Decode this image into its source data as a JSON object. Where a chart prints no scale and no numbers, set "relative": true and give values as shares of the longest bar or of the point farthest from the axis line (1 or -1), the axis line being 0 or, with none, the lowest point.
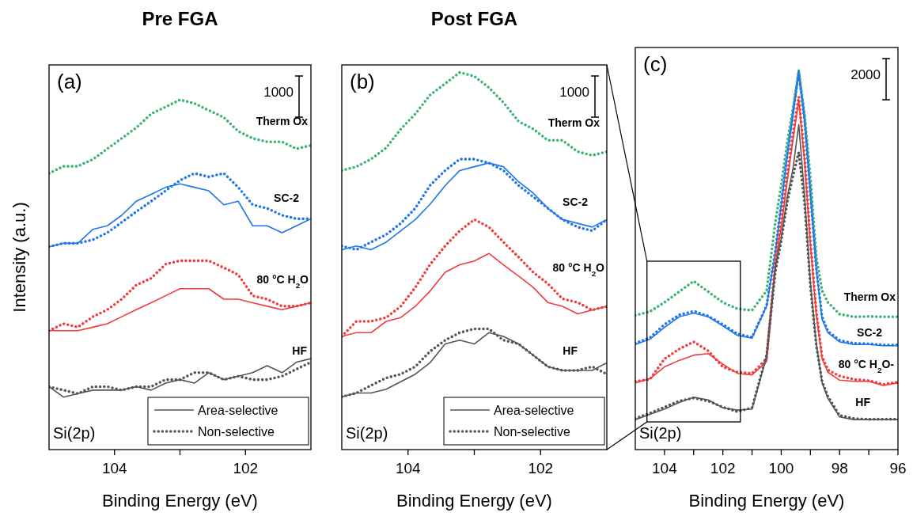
{
  "chart_data": [
    {
      "type": "line",
      "title": "Pre FGA",
      "xlabel": "Binding Energy (eV)",
      "ylabel": "Intensity (a.u.)",
      "relative": true,
      "legend": "bottom right",
      "marker": "none",
      "x": [
        105,
        104.78,
        104.56,
        104.33,
        104.11,
        103.89,
        103.67,
        103.44,
        103.22,
        103.0,
        102.78,
        102.56,
        102.33,
        102.11,
        101.89,
        101.67,
        101.44,
        101.22,
        101.0
      ],
      "xlim": [
        105,
        101
      ],
      "xticks": [
        104,
        {
          "value": 103,
          "label": null
        },
        102
      ],
      "annotations": [
        "(a)",
        "1000",
        "Si(2p)",
        "Therm Ox",
        "SC-2",
        "80 °C H$_{2}$O",
        "HF"
      ],
      "series": [
        {
          "color": "#3cb371",
          "line_style": "dotted",
          "values": [
            0.79,
            0.81,
            0.81,
            0.83,
            0.86,
            0.89,
            0.92,
            0.96,
            0.98,
            1.0,
            0.99,
            0.97,
            0.95,
            0.91,
            0.89,
            0.88,
            0.88,
            0.86,
            0.87
          ]
        },
        {
          "color": "#1f77e8",
          "line_style": "solid",
          "values": [
            0.58,
            0.59,
            0.59,
            0.63,
            0.64,
            0.67,
            0.71,
            0.73,
            0.75,
            0.76,
            0.75,
            0.74,
            0.7,
            0.71,
            0.64,
            0.64,
            0.62,
            0.64,
            0.66
          ]
        },
        {
          "color": "#1f77e8",
          "line_style": "dotted",
          "values": [
            0.58,
            0.59,
            0.59,
            0.6,
            0.62,
            0.65,
            0.68,
            0.71,
            0.74,
            0.77,
            0.79,
            0.78,
            0.79,
            0.75,
            0.7,
            0.69,
            0.67,
            0.66,
            0.66
          ]
        },
        {
          "color": "#f03c3c",
          "line_style": "solid",
          "values": [
            0.34,
            0.34,
            0.34,
            0.35,
            0.36,
            0.38,
            0.4,
            0.42,
            0.44,
            0.46,
            0.46,
            0.46,
            0.43,
            0.43,
            0.42,
            0.41,
            0.4,
            0.41,
            0.42
          ]
        },
        {
          "color": "#f03c3c",
          "line_style": "dotted",
          "values": [
            0.34,
            0.36,
            0.35,
            0.38,
            0.4,
            0.43,
            0.47,
            0.49,
            0.53,
            0.54,
            0.54,
            0.54,
            0.52,
            0.5,
            0.44,
            0.43,
            0.41,
            0.41,
            0.42
          ]
        },
        {
          "name": "Area-selective",
          "color": "#555555",
          "line_style": "solid",
          "values": [
            0.18,
            0.15,
            0.16,
            0.17,
            0.17,
            0.17,
            0.18,
            0.17,
            0.19,
            0.2,
            0.19,
            0.22,
            0.2,
            0.21,
            0.22,
            0.24,
            0.22,
            0.25,
            0.26
          ]
        },
        {
          "name": "Non-selective",
          "color": "#555555",
          "line_style": "dotted",
          "values": [
            0.18,
            0.17,
            0.16,
            0.18,
            0.18,
            0.17,
            0.18,
            0.18,
            0.2,
            0.2,
            0.22,
            0.22,
            0.2,
            0.21,
            0.2,
            0.2,
            0.21,
            0.23,
            0.25
          ]
        }
      ]
    },
    {
      "type": "line",
      "title": "Post FGA",
      "xlabel": "Binding Energy (eV)",
      "relative": true,
      "legend": "bottom right",
      "marker": "none",
      "x": [
        105,
        104.78,
        104.56,
        104.33,
        104.11,
        103.89,
        103.67,
        103.44,
        103.22,
        103.0,
        102.78,
        102.56,
        102.33,
        102.11,
        101.89,
        101.67,
        101.44,
        101.22,
        101.0
      ],
      "xlim": [
        105,
        101
      ],
      "xticks": [
        104,
        {
          "value": 103,
          "label": null
        },
        102
      ],
      "annotations": [
        "(b)",
        "1000",
        "Si(2p)",
        "Therm Ox",
        "SC-2",
        "80 °C H$_{2}$O",
        "HF"
      ],
      "series": [
        {
          "color": "#3cb371",
          "line_style": "dotted",
          "values": [
            0.74,
            0.75,
            0.77,
            0.8,
            0.85,
            0.89,
            0.94,
            0.97,
            1.0,
            0.99,
            0.96,
            0.92,
            0.87,
            0.85,
            0.82,
            0.82,
            0.79,
            0.78,
            0.79
          ]
        },
        {
          "color": "#1f77e8",
          "line_style": "solid",
          "values": [
            0.53,
            0.54,
            0.53,
            0.55,
            0.58,
            0.61,
            0.65,
            0.7,
            0.74,
            0.75,
            0.76,
            0.75,
            0.71,
            0.68,
            0.64,
            0.61,
            0.6,
            0.59,
            0.61
          ]
        },
        {
          "color": "#1f77e8",
          "line_style": "dotted",
          "values": [
            0.54,
            0.53,
            0.55,
            0.57,
            0.6,
            0.64,
            0.7,
            0.74,
            0.77,
            0.77,
            0.76,
            0.74,
            0.7,
            0.67,
            0.64,
            0.61,
            0.59,
            0.58,
            0.61
          ]
        },
        {
          "color": "#f03c3c",
          "line_style": "solid",
          "values": [
            0.3,
            0.31,
            0.31,
            0.34,
            0.35,
            0.38,
            0.42,
            0.47,
            0.49,
            0.5,
            0.52,
            0.49,
            0.46,
            0.43,
            0.39,
            0.38,
            0.36,
            0.37,
            0.38
          ]
        },
        {
          "color": "#f03c3c",
          "line_style": "dotted",
          "values": [
            0.3,
            0.34,
            0.34,
            0.35,
            0.38,
            0.43,
            0.49,
            0.54,
            0.58,
            0.61,
            0.59,
            0.55,
            0.51,
            0.47,
            0.44,
            0.4,
            0.39,
            0.37,
            0.38
          ]
        },
        {
          "name": "Area-selective",
          "color": "#555555",
          "line_style": "solid",
          "values": [
            0.14,
            0.15,
            0.15,
            0.16,
            0.18,
            0.2,
            0.23,
            0.28,
            0.29,
            0.28,
            0.31,
            0.3,
            0.28,
            0.25,
            0.22,
            0.21,
            0.21,
            0.21,
            0.23
          ]
        },
        {
          "name": "Non-selective",
          "color": "#555555",
          "line_style": "dotted",
          "values": [
            0.14,
            0.15,
            0.17,
            0.19,
            0.2,
            0.22,
            0.26,
            0.29,
            0.31,
            0.32,
            0.32,
            0.29,
            0.28,
            0.25,
            0.22,
            0.21,
            0.21,
            0.22,
            0.2
          ]
        }
      ]
    },
    {
      "type": "line",
      "xlabel": "Binding Energy (eV)",
      "relative": true,
      "marker": "none",
      "x": [
        105,
        104.5,
        104,
        103.5,
        103,
        102.5,
        102,
        101.5,
        101,
        100.5,
        100.2,
        100,
        99.8,
        99.6,
        99.4,
        99.2,
        99,
        98.8,
        98.6,
        98.4,
        98,
        97.5,
        97,
        96.5,
        96
      ],
      "xlim": [
        105,
        96
      ],
      "xticks": [
        104,
        {
          "value": 103,
          "label": null
        },
        102,
        {
          "value": 101,
          "label": null
        },
        100,
        {
          "value": 99,
          "label": null
        },
        98,
        {
          "value": 97,
          "label": null
        },
        96
      ],
      "annotations": [
        "(c)",
        "2000",
        "Si(2p)",
        "Therm Ox",
        "SC-2",
        "80 °C H$_{2}$O-",
        "HF"
      ],
      "series": [
        {
          "color": "#3cb371",
          "line_style": "dotted",
          "values": [
            0.354,
            0.364,
            0.388,
            0.416,
            0.444,
            0.416,
            0.388,
            0.371,
            0.367,
            0.419,
            0.6,
            0.697,
            0.808,
            0.899,
            1.0,
            0.885,
            0.718,
            0.51,
            0.419,
            0.388,
            0.357,
            0.35,
            0.351,
            0.35,
            0.35
          ]
        },
        {
          "color": "#1f77e8",
          "line_style": "solid",
          "values": [
            0.277,
            0.291,
            0.322,
            0.35,
            0.36,
            0.35,
            0.326,
            0.301,
            0.294,
            0.378,
            0.52,
            0.642,
            0.767,
            0.878,
            0.99,
            0.864,
            0.669,
            0.475,
            0.343,
            0.308,
            0.284,
            0.277,
            0.277,
            0.274,
            0.274
          ]
        },
        {
          "color": "#1f77e8",
          "line_style": "dotted",
          "values": [
            0.28,
            0.295,
            0.33,
            0.355,
            0.365,
            0.352,
            0.33,
            0.305,
            0.296,
            0.38,
            0.525,
            0.65,
            0.775,
            0.885,
            0.995,
            0.87,
            0.675,
            0.48,
            0.35,
            0.312,
            0.288,
            0.28,
            0.279,
            0.276,
            0.276
          ]
        },
        {
          "color": "#f03c3c",
          "line_style": "solid",
          "values": [
            0.176,
            0.187,
            0.218,
            0.235,
            0.249,
            0.253,
            0.225,
            0.201,
            0.197,
            0.232,
            0.49,
            0.586,
            0.704,
            0.815,
            0.919,
            0.76,
            0.538,
            0.357,
            0.239,
            0.204,
            0.183,
            0.18,
            0.18,
            0.169,
            0.176
          ]
        },
        {
          "color": "#f03c3c",
          "line_style": "dotted",
          "values": [
            0.18,
            0.185,
            0.239,
            0.265,
            0.284,
            0.26,
            0.218,
            0.204,
            0.201,
            0.239,
            0.5,
            0.6,
            0.72,
            0.83,
            0.93,
            0.77,
            0.55,
            0.365,
            0.245,
            0.21,
            0.194,
            0.185,
            0.182,
            0.172,
            0.178
          ]
        },
        {
          "color": "#555555",
          "line_style": "solid",
          "values": [
            0.079,
            0.093,
            0.107,
            0.124,
            0.138,
            0.131,
            0.11,
            0.104,
            0.107,
            0.246,
            0.482,
            0.558,
            0.663,
            0.739,
            0.857,
            0.669,
            0.44,
            0.281,
            0.176,
            0.135,
            0.086,
            0.079,
            0.079,
            0.079,
            0.079
          ]
        },
        {
          "color": "#555555",
          "line_style": "dotted",
          "values": [
            0.082,
            0.096,
            0.112,
            0.128,
            0.136,
            0.128,
            0.112,
            0.1,
            0.11,
            0.25,
            0.47,
            0.55,
            0.65,
            0.72,
            0.784,
            0.65,
            0.43,
            0.275,
            0.18,
            0.14,
            0.09,
            0.082,
            0.08,
            0.08,
            0.08
          ]
        }
      ]
    }
  ]
}
